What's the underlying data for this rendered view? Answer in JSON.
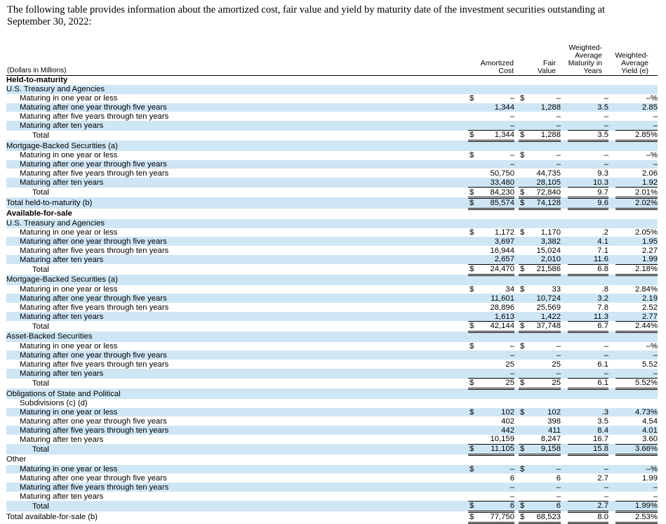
{
  "intro": "The following table provides information about the amortized cost, fair value and yield by maturity date of the investment securities outstanding at September 30, 2022:",
  "header": {
    "dollars": "(Dollars in Millions)",
    "amortized_1": "Amortized",
    "amortized_2": "Cost",
    "fair_1": "Fair",
    "fair_2": "Value",
    "wam_1": "Weighted-",
    "wam_2": "Average",
    "wam_3": "Maturity in",
    "wam_4": "Years",
    "way_1": "Weighted-",
    "way_2": "Average",
    "way_3": "Yield (e)"
  },
  "rows": [
    {
      "label": "Held-to-maturity",
      "indent": 1,
      "bold": true
    },
    {
      "label": "U.S. Treasury and Agencies",
      "indent": 1
    },
    {
      "label": "Maturing in one year or less",
      "indent": 2,
      "ac_cur": "$",
      "ac": "–",
      "fv_cur": "$",
      "fv": "–",
      "m": "–",
      "y": "–%"
    },
    {
      "label": "Maturing after one year through five years",
      "indent": 2,
      "ac": "1,344",
      "fv": "1,288",
      "m": "3.5",
      "y": "2.85"
    },
    {
      "label": "Maturing after five years through ten years",
      "indent": 2,
      "ac": "–",
      "fv": "–",
      "m": "–",
      "y": "–"
    },
    {
      "label": "Maturing after ten years",
      "indent": 2,
      "ac": "–",
      "fv": "–",
      "m": "–",
      "y": "–"
    },
    {
      "label": "Total",
      "indent": 3,
      "ac_cur": "$",
      "ac": "1,344",
      "fv_cur": "$",
      "fv": "1,288",
      "m": "3.5",
      "y": "2.85%",
      "topline": true,
      "dbl": true
    },
    {
      "label": "Mortgage-Backed Securities (a)",
      "indent": 1
    },
    {
      "label": "Maturing in one year or less",
      "indent": 2,
      "ac_cur": "$",
      "ac": "–",
      "fv_cur": "$",
      "fv": "–",
      "m": "–",
      "y": "–%"
    },
    {
      "label": "Maturing after one year through five years",
      "indent": 2,
      "ac": "–",
      "fv": "–",
      "m": "–",
      "y": "–"
    },
    {
      "label": "Maturing after five years through ten years",
      "indent": 2,
      "ac": "50,750",
      "fv": "44,735",
      "m": "9.3",
      "y": "2.06"
    },
    {
      "label": "Maturing after ten years",
      "indent": 2,
      "ac": "33,480",
      "fv": "28,105",
      "m": "10.3",
      "y": "1.92"
    },
    {
      "label": "Total",
      "indent": 3,
      "ac_cur": "$",
      "ac": "84,230",
      "fv_cur": "$",
      "fv": "72,840",
      "m": "9.7",
      "y": "2.01%",
      "topline": true,
      "dbl": true
    },
    {
      "label": "Total held-to-maturity (b)",
      "indent": 1,
      "ac_cur": "$",
      "ac": "85,574",
      "fv_cur": "$",
      "fv": "74,128",
      "m": "9.6",
      "y": "2.02%",
      "dbl": true
    },
    {
      "label": "Available-for-sale",
      "indent": 1,
      "bold": true
    },
    {
      "label": "U.S. Treasury and Agencies",
      "indent": 1
    },
    {
      "label": "Maturing in one year or less",
      "indent": 2,
      "ac_cur": "$",
      "ac": "1,172",
      "fv_cur": "$",
      "fv": "1,170",
      "m": ".2",
      "y": "2.05%"
    },
    {
      "label": "Maturing after one year through five years",
      "indent": 2,
      "ac": "3,697",
      "fv": "3,382",
      "m": "4.1",
      "y": "1.95"
    },
    {
      "label": "Maturing after five years through ten years",
      "indent": 2,
      "ac": "16,944",
      "fv": "15,024",
      "m": "7.1",
      "y": "2.27"
    },
    {
      "label": "Maturing after ten years",
      "indent": 2,
      "ac": "2,657",
      "fv": "2,010",
      "m": "11.6",
      "y": "1.99"
    },
    {
      "label": "Total",
      "indent": 3,
      "ac_cur": "$",
      "ac": "24,470",
      "fv_cur": "$",
      "fv": "21,586",
      "m": "6.8",
      "y": "2.18%",
      "topline": true,
      "dbl": true
    },
    {
      "label": "Mortgage-Backed Securities (a)",
      "indent": 1
    },
    {
      "label": "Maturing in one year or less",
      "indent": 2,
      "ac_cur": "$",
      "ac": "34",
      "fv_cur": "$",
      "fv": "33",
      "m": ".8",
      "y": "2.84%"
    },
    {
      "label": "Maturing after one year through five years",
      "indent": 2,
      "ac": "11,601",
      "fv": "10,724",
      "m": "3.2",
      "y": "2.19"
    },
    {
      "label": "Maturing after five years through ten years",
      "indent": 2,
      "ac": "28,896",
      "fv": "25,569",
      "m": "7.8",
      "y": "2.52"
    },
    {
      "label": "Maturing after ten years",
      "indent": 2,
      "ac": "1,613",
      "fv": "1,422",
      "m": "11.3",
      "y": "2.77"
    },
    {
      "label": "Total",
      "indent": 3,
      "ac_cur": "$",
      "ac": "42,144",
      "fv_cur": "$",
      "fv": "37,748",
      "m": "6.7",
      "y": "2.44%",
      "topline": true,
      "dbl": true
    },
    {
      "label": "Asset-Backed Securities",
      "indent": 1
    },
    {
      "label": "Maturing in one year or less",
      "indent": 2,
      "ac_cur": "$",
      "ac": "–",
      "fv_cur": "$",
      "fv": "–",
      "m": "–",
      "y": "–%"
    },
    {
      "label": "Maturing after one year through five years",
      "indent": 2,
      "ac": "–",
      "fv": "–",
      "m": "–",
      "y": "–"
    },
    {
      "label": "Maturing after five years through ten years",
      "indent": 2,
      "ac": "25",
      "fv": "25",
      "m": "6.1",
      "y": "5.52"
    },
    {
      "label": "Maturing after ten years",
      "indent": 2,
      "ac": "–",
      "fv": "–",
      "m": "–",
      "y": "–"
    },
    {
      "label": "Total",
      "indent": 3,
      "ac_cur": "$",
      "ac": "25",
      "fv_cur": "$",
      "fv": "25",
      "m": "6.1",
      "y": "5.52%",
      "topline": true,
      "dbl": true
    },
    {
      "label": "Obligations of State and Political",
      "indent": 1
    },
    {
      "label": "Subdivisions (c) (d)",
      "indent": 2
    },
    {
      "label": "Maturing in one year or less",
      "indent": 2,
      "ac_cur": "$",
      "ac": "102",
      "fv_cur": "$",
      "fv": "102",
      "m": ".3",
      "y": "4.73%"
    },
    {
      "label": "Maturing after one year through five years",
      "indent": 2,
      "ac": "402",
      "fv": "398",
      "m": "3.5",
      "y": "4.54"
    },
    {
      "label": "Maturing after five years through ten years",
      "indent": 2,
      "ac": "442",
      "fv": "411",
      "m": "8.4",
      "y": "4.01"
    },
    {
      "label": "Maturing after ten years",
      "indent": 2,
      "ac": "10,159",
      "fv": "8,247",
      "m": "16.7",
      "y": "3.60"
    },
    {
      "label": "Total",
      "indent": 3,
      "ac_cur": "$",
      "ac": "11,105",
      "fv_cur": "$",
      "fv": "9,158",
      "m": "15.8",
      "y": "3.66%",
      "topline": true,
      "dbl": true
    },
    {
      "label": "Other",
      "indent": 1
    },
    {
      "label": "Maturing in one year or less",
      "indent": 2,
      "ac_cur": "$",
      "ac": "–",
      "fv_cur": "$",
      "fv": "–",
      "m": "–",
      "y": "–%"
    },
    {
      "label": "Maturing after one year through five years",
      "indent": 2,
      "ac": "6",
      "fv": "6",
      "m": "2.7",
      "y": "1.99"
    },
    {
      "label": "Maturing after five years through ten years",
      "indent": 2,
      "ac": "–",
      "fv": "–",
      "m": "–",
      "y": "–"
    },
    {
      "label": "Maturing after ten years",
      "indent": 2,
      "ac": "–",
      "fv": "–",
      "m": "–",
      "y": "–"
    },
    {
      "label": "Total",
      "indent": 3,
      "ac_cur": "$",
      "ac": "6",
      "fv_cur": "$",
      "fv": "6",
      "m": "2.7",
      "y": "1.99%",
      "topline": true,
      "dbl": true
    },
    {
      "label": "Total available-for-sale (b)",
      "indent": 1,
      "ac_cur": "$",
      "ac": "77,750",
      "fv_cur": "$",
      "fv": "68,523",
      "m": "8.0",
      "y": "2.53%",
      "dbl": true
    }
  ],
  "colors": {
    "row_shade": "#cfe6f4",
    "text": "#000000"
  }
}
